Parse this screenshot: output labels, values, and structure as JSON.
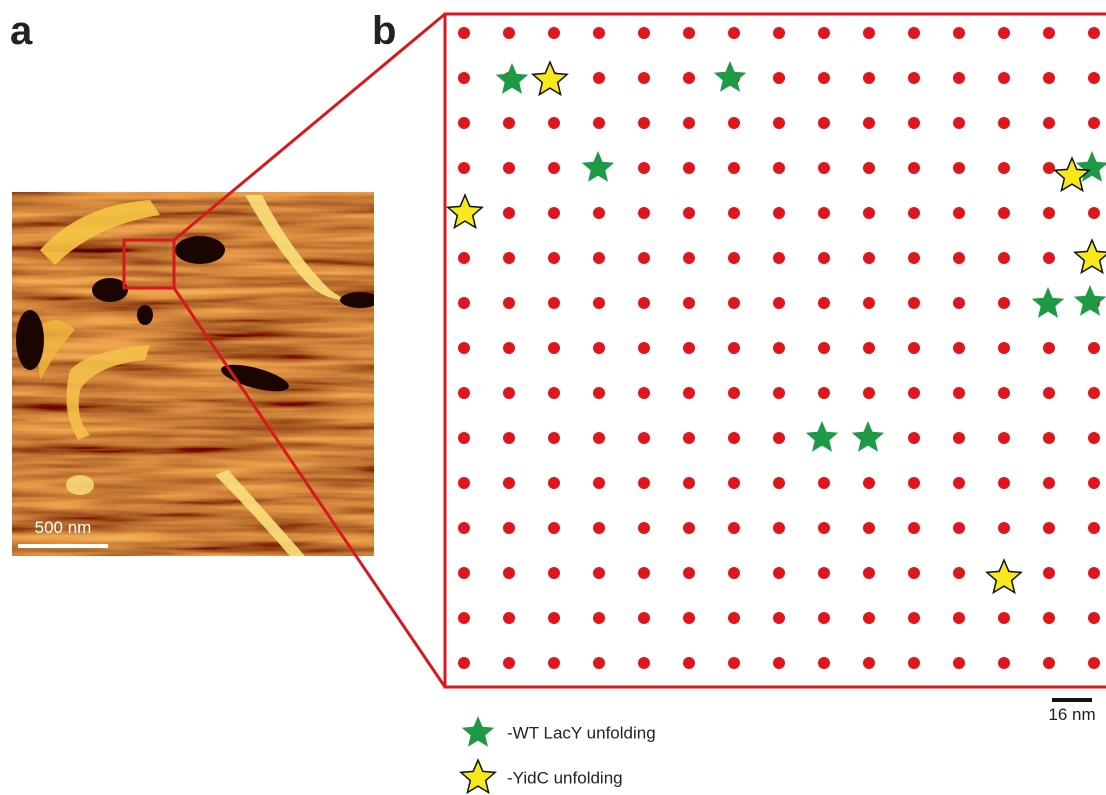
{
  "panel_a": {
    "label": "a",
    "scale_bar": "500 nm"
  },
  "panel_b": {
    "label": "b",
    "scale_bar": "16 nm"
  },
  "legend": [
    {
      "label": "-WT LacY unfolding"
    },
    {
      "label": "-YidC unfolding"
    }
  ]
}
